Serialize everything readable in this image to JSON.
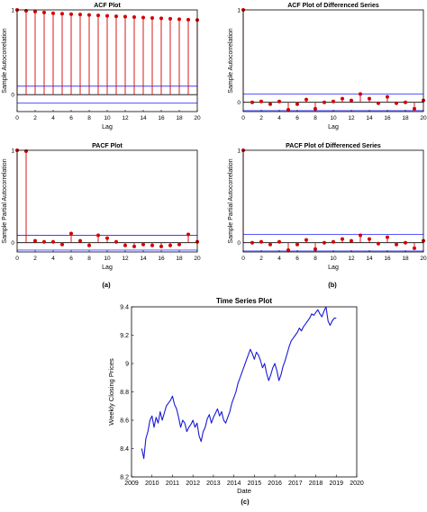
{
  "panel_labels": {
    "a": "(a)",
    "b": "(b)",
    "c": "(c)"
  },
  "colors": {
    "stem": "#d40000",
    "bound": "#4040ff",
    "zero": "#000000",
    "series": "#1a1ad6",
    "axis": "#000000"
  },
  "chart_data": [
    {
      "id": "acf",
      "type": "stem",
      "title": "ACF Plot",
      "xlabel": "Lag",
      "ylabel": "Sample Autocorrelation",
      "x": [
        0,
        1,
        2,
        3,
        4,
        5,
        6,
        7,
        8,
        9,
        10,
        11,
        12,
        13,
        14,
        15,
        16,
        17,
        18,
        19,
        20
      ],
      "values": [
        1.0,
        0.99,
        0.98,
        0.97,
        0.96,
        0.955,
        0.95,
        0.945,
        0.94,
        0.935,
        0.93,
        0.925,
        0.92,
        0.915,
        0.91,
        0.905,
        0.9,
        0.895,
        0.89,
        0.885,
        0.88
      ],
      "bounds": [
        0.1,
        -0.1
      ],
      "xlim": [
        0,
        20
      ],
      "ylim": [
        -0.2,
        1.0
      ],
      "xticks": [
        0,
        2,
        4,
        6,
        8,
        10,
        12,
        14,
        16,
        18,
        20
      ],
      "yticks": [
        {
          "value": 0,
          "label": "0"
        },
        {
          "value": 1,
          "label": "1"
        }
      ]
    },
    {
      "id": "acf-diff",
      "type": "stem",
      "title": "ACF Plot of Differenced Series",
      "xlabel": "Lag",
      "ylabel": "Sample Autocorrelation",
      "x": [
        0,
        1,
        2,
        3,
        4,
        5,
        6,
        7,
        8,
        9,
        10,
        11,
        12,
        13,
        14,
        15,
        16,
        17,
        18,
        19,
        20
      ],
      "values": [
        1.0,
        0.0,
        0.01,
        -0.02,
        0.01,
        -0.08,
        -0.02,
        0.03,
        -0.07,
        0.0,
        0.01,
        0.04,
        0.02,
        0.09,
        0.04,
        -0.01,
        0.06,
        -0.01,
        0.0,
        -0.07,
        0.02
      ],
      "bounds": [
        0.09,
        -0.09
      ],
      "xlim": [
        0,
        20
      ],
      "ylim": [
        -0.1,
        1.0
      ],
      "xticks": [
        0,
        2,
        4,
        6,
        8,
        10,
        12,
        14,
        16,
        18,
        20
      ],
      "yticks": [
        {
          "value": 0,
          "label": "0"
        },
        {
          "value": 1,
          "label": "1"
        }
      ]
    },
    {
      "id": "pacf",
      "type": "stem",
      "title": "PACF Plot",
      "xlabel": "Lag",
      "ylabel": "Sample Partial Autocorrelation",
      "x": [
        0,
        1,
        2,
        3,
        4,
        5,
        6,
        7,
        8,
        9,
        10,
        11,
        12,
        13,
        14,
        15,
        16,
        17,
        18,
        19,
        20
      ],
      "values": [
        1.0,
        0.99,
        0.02,
        0.01,
        0.01,
        -0.02,
        0.1,
        0.02,
        -0.03,
        0.08,
        0.05,
        0.01,
        -0.03,
        -0.04,
        -0.02,
        -0.03,
        -0.04,
        -0.03,
        -0.02,
        0.09,
        0.01
      ],
      "bounds": [
        0.08,
        -0.08
      ],
      "xlim": [
        0,
        20
      ],
      "ylim": [
        -0.1,
        1.0
      ],
      "xticks": [
        0,
        2,
        4,
        6,
        8,
        10,
        12,
        14,
        16,
        18,
        20
      ],
      "yticks": [
        {
          "value": 0,
          "label": "0"
        },
        {
          "value": 1,
          "label": "1"
        }
      ]
    },
    {
      "id": "pacf-diff",
      "type": "stem",
      "title": "PACF Plot of Differenced Series",
      "xlabel": "Lag",
      "ylabel": "Sample Partial Autocorrelation",
      "x": [
        0,
        1,
        2,
        3,
        4,
        5,
        6,
        7,
        8,
        9,
        10,
        11,
        12,
        13,
        14,
        15,
        16,
        17,
        18,
        19,
        20
      ],
      "values": [
        1.0,
        0.0,
        0.01,
        -0.02,
        0.01,
        -0.08,
        -0.02,
        0.03,
        -0.07,
        0.0,
        0.01,
        0.04,
        0.02,
        0.08,
        0.04,
        -0.01,
        0.06,
        -0.02,
        0.0,
        -0.06,
        0.02
      ],
      "bounds": [
        0.09,
        -0.09
      ],
      "xlim": [
        0,
        20
      ],
      "ylim": [
        -0.1,
        1.0
      ],
      "xticks": [
        0,
        2,
        4,
        6,
        8,
        10,
        12,
        14,
        16,
        18,
        20
      ],
      "yticks": [
        {
          "value": 0,
          "label": "0"
        },
        {
          "value": 1,
          "label": "1"
        }
      ]
    },
    {
      "id": "timeseries",
      "type": "line",
      "title": "Time Series Plot",
      "xlabel": "Date",
      "ylabel": "Weekly Closing Prices",
      "series": [
        {
          "x": [
            2009.5,
            2009.6,
            2009.7,
            2009.8,
            2009.9,
            2010.0,
            2010.1,
            2010.2,
            2010.3,
            2010.4,
            2010.5,
            2010.6,
            2010.7,
            2010.8,
            2010.9,
            2011.0,
            2011.1,
            2011.2,
            2011.3,
            2011.4,
            2011.5,
            2011.6,
            2011.7,
            2011.8,
            2011.9,
            2012.0,
            2012.1,
            2012.2,
            2012.3,
            2012.4,
            2012.5,
            2012.6,
            2012.7,
            2012.8,
            2012.9,
            2013.0,
            2013.1,
            2013.2,
            2013.3,
            2013.4,
            2013.5,
            2013.6,
            2013.7,
            2013.8,
            2013.9,
            2014.0,
            2014.1,
            2014.2,
            2014.3,
            2014.4,
            2014.5,
            2014.6,
            2014.7,
            2014.8,
            2014.9,
            2015.0,
            2015.1,
            2015.2,
            2015.3,
            2015.4,
            2015.5,
            2015.6,
            2015.7,
            2015.8,
            2015.9,
            2016.0,
            2016.1,
            2016.2,
            2016.3,
            2016.4,
            2016.5,
            2016.6,
            2016.7,
            2016.8,
            2016.9,
            2017.0,
            2017.1,
            2017.2,
            2017.3,
            2017.4,
            2017.5,
            2017.6,
            2017.7,
            2017.8,
            2017.9,
            2018.0,
            2018.1,
            2018.2,
            2018.3,
            2018.4,
            2018.5,
            2018.6,
            2018.7,
            2018.8,
            2018.9,
            2019.0
          ],
          "y": [
            8.4,
            8.33,
            8.47,
            8.52,
            8.6,
            8.63,
            8.55,
            8.62,
            8.58,
            8.66,
            8.6,
            8.65,
            8.7,
            8.72,
            8.74,
            8.77,
            8.71,
            8.68,
            8.62,
            8.55,
            8.6,
            8.58,
            8.52,
            8.55,
            8.57,
            8.6,
            8.55,
            8.58,
            8.49,
            8.45,
            8.52,
            8.55,
            8.61,
            8.64,
            8.58,
            8.62,
            8.65,
            8.68,
            8.63,
            8.66,
            8.6,
            8.58,
            8.62,
            8.66,
            8.72,
            8.76,
            8.8,
            8.86,
            8.9,
            8.94,
            8.98,
            9.02,
            9.06,
            9.1,
            9.07,
            9.03,
            9.08,
            9.06,
            9.02,
            8.97,
            9.0,
            8.93,
            8.88,
            8.92,
            8.97,
            9.0,
            8.95,
            8.88,
            8.92,
            8.98,
            9.02,
            9.07,
            9.12,
            9.16,
            9.18,
            9.2,
            9.22,
            9.25,
            9.23,
            9.26,
            9.28,
            9.3,
            9.32,
            9.35,
            9.34,
            9.36,
            9.38,
            9.35,
            9.33,
            9.37,
            9.4,
            9.3,
            9.27,
            9.3,
            9.32,
            9.32
          ]
        }
      ],
      "xlim": [
        2009,
        2020
      ],
      "ylim": [
        8.2,
        9.4
      ],
      "xticks": [
        2009,
        2010,
        2011,
        2012,
        2013,
        2014,
        2015,
        2016,
        2017,
        2018,
        2019,
        2020
      ],
      "yticks": [
        8.2,
        8.4,
        8.6,
        8.8,
        9,
        9.2,
        9.4
      ]
    }
  ]
}
